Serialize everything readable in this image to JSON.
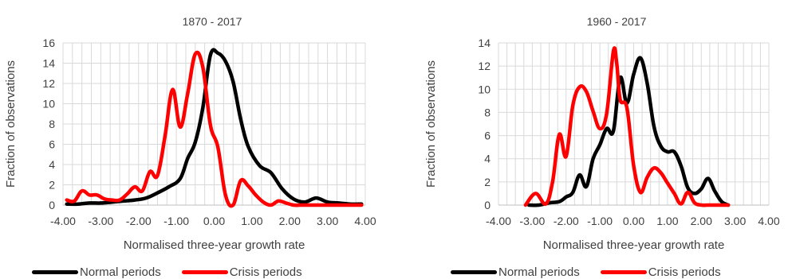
{
  "colors": {
    "normal": "#000000",
    "crisis": "#ff0000",
    "grid": "#d9d9d9",
    "text": "#404040"
  },
  "legend": {
    "normal_label": "Normal periods",
    "crisis_label": "Crisis periods"
  },
  "chart_data": [
    {
      "type": "line",
      "title": "1870 - 2017",
      "xlabel": "Normalised three-year growth rate",
      "ylabel": "Fraction of observations",
      "xlim": [
        -4,
        4
      ],
      "ylim": [
        0,
        16
      ],
      "x_ticks": [
        -4,
        -3,
        -2,
        -1,
        0,
        1,
        2,
        3,
        4
      ],
      "x_tick_labels": [
        "-4.00",
        "-3.00",
        "-2.00",
        "-1.00",
        "0.00",
        "1.00",
        "2.00",
        "3.00",
        "4.00"
      ],
      "y_ticks": [
        0,
        2,
        4,
        6,
        8,
        10,
        12,
        14,
        16
      ],
      "y_tick_labels": [
        "0",
        "2",
        "4",
        "6",
        "8",
        "10",
        "12",
        "14",
        "16"
      ],
      "grid": true,
      "legend_position": "bottom",
      "series": [
        {
          "name": "Normal periods",
          "color": "#000000",
          "x": [
            -3.9,
            -3.6,
            -3.3,
            -3.0,
            -2.7,
            -2.4,
            -2.1,
            -1.8,
            -1.5,
            -1.2,
            -0.9,
            -0.7,
            -0.5,
            -0.3,
            -0.1,
            0.1,
            0.3,
            0.5,
            0.7,
            0.9,
            1.2,
            1.5,
            1.8,
            2.1,
            2.4,
            2.7,
            3.0,
            3.3,
            3.6,
            3.9
          ],
          "y": [
            0.1,
            0.1,
            0.2,
            0.2,
            0.3,
            0.4,
            0.5,
            0.7,
            1.2,
            1.8,
            2.6,
            4.6,
            6.2,
            9.6,
            14.8,
            15.0,
            14.2,
            12.2,
            8.5,
            5.8,
            3.9,
            3.2,
            1.6,
            0.6,
            0.3,
            0.7,
            0.3,
            0.2,
            0.1,
            0.1
          ]
        },
        {
          "name": "Crisis periods",
          "color": "#ff0000",
          "x": [
            -3.9,
            -3.7,
            -3.5,
            -3.3,
            -3.1,
            -2.9,
            -2.7,
            -2.5,
            -2.3,
            -2.1,
            -1.9,
            -1.7,
            -1.5,
            -1.3,
            -1.1,
            -0.9,
            -0.7,
            -0.5,
            -0.3,
            -0.1,
            0.1,
            0.3,
            0.5,
            0.7,
            0.9,
            1.1,
            1.3,
            1.5,
            1.7,
            1.9,
            2.1,
            2.3,
            2.5,
            2.7,
            2.9,
            3.1,
            3.3,
            3.5,
            3.7,
            3.9
          ],
          "y": [
            0.5,
            0.4,
            1.4,
            1.0,
            1.0,
            0.6,
            0.5,
            0.5,
            1.1,
            1.8,
            1.4,
            3.3,
            2.9,
            6.8,
            11.4,
            7.7,
            11.0,
            14.9,
            13.6,
            7.9,
            5.7,
            1.0,
            0.0,
            2.4,
            1.9,
            1.0,
            0.3,
            0.0,
            0.4,
            0.2,
            0.0,
            0.0,
            0.0,
            0.0,
            0.0,
            0.0,
            0.0,
            0.0,
            0.0,
            0.0
          ]
        }
      ]
    },
    {
      "type": "line",
      "title": "1960 - 2017",
      "xlabel": "Normalised three-year growth rate",
      "ylabel": "Fraction of observations",
      "xlim": [
        -4,
        4
      ],
      "ylim": [
        0,
        14
      ],
      "x_ticks": [
        -4,
        -3,
        -2,
        -1,
        0,
        1,
        2,
        3,
        4
      ],
      "x_tick_labels": [
        "-4.00",
        "-3.00",
        "-2.00",
        "-1.00",
        "0.00",
        "1.00",
        "2.00",
        "3.00",
        "4.00"
      ],
      "y_ticks": [
        0,
        2,
        4,
        6,
        8,
        10,
        12,
        14
      ],
      "y_tick_labels": [
        "0",
        "2",
        "4",
        "6",
        "8",
        "10",
        "12",
        "14"
      ],
      "grid": true,
      "legend_position": "bottom",
      "series": [
        {
          "name": "Normal periods",
          "color": "#000000",
          "x": [
            -3.1,
            -2.8,
            -2.5,
            -2.2,
            -2.0,
            -1.8,
            -1.6,
            -1.4,
            -1.2,
            -1.0,
            -0.8,
            -0.6,
            -0.4,
            -0.2,
            0.0,
            0.2,
            0.4,
            0.6,
            0.8,
            1.0,
            1.2,
            1.4,
            1.6,
            1.8,
            2.0,
            2.2,
            2.4,
            2.6,
            2.8
          ],
          "y": [
            0.0,
            0.0,
            0.2,
            0.3,
            0.7,
            1.1,
            2.6,
            1.6,
            4.0,
            5.2,
            6.6,
            6.4,
            11.0,
            8.8,
            11.3,
            12.7,
            10.5,
            6.8,
            5.1,
            4.6,
            4.6,
            3.4,
            1.5,
            1.0,
            1.4,
            2.3,
            1.2,
            0.3,
            0.0
          ]
        },
        {
          "name": "Crisis periods",
          "color": "#ff0000",
          "x": [
            -3.2,
            -2.9,
            -2.6,
            -2.4,
            -2.2,
            -2.0,
            -1.8,
            -1.6,
            -1.4,
            -1.2,
            -1.0,
            -0.8,
            -0.6,
            -0.5,
            -0.4,
            -0.2,
            0.0,
            0.2,
            0.4,
            0.6,
            0.8,
            1.0,
            1.2,
            1.4,
            1.6,
            1.8,
            2.0,
            2.2,
            2.4,
            2.6,
            2.8
          ],
          "y": [
            0.0,
            1.0,
            0.1,
            2.0,
            6.1,
            4.2,
            8.6,
            10.2,
            9.8,
            8.1,
            6.6,
            7.9,
            13.3,
            12.2,
            9.1,
            8.4,
            3.4,
            1.1,
            2.4,
            3.2,
            2.8,
            1.9,
            1.0,
            0.1,
            1.1,
            0.2,
            0.0,
            0.0,
            0.0,
            0.0,
            0.0
          ]
        }
      ]
    }
  ]
}
